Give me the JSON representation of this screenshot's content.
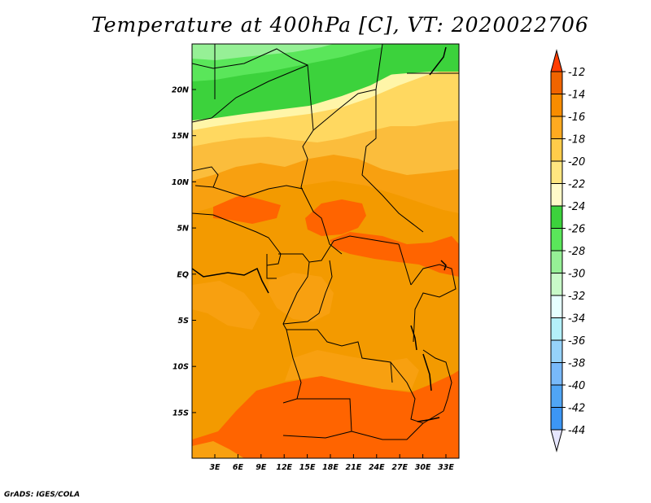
{
  "chart_data": {
    "type": "heatmap",
    "title": "Temperature at 400hPa [C], VT: 2020022706",
    "x_axis": {
      "ticks": [
        "3E",
        "6E",
        "9E",
        "12E",
        "15E",
        "18E",
        "21E",
        "24E",
        "27E",
        "30E",
        "33E"
      ]
    },
    "y_axis": {
      "ticks": [
        "20N",
        "15N",
        "10N",
        "5N",
        "EQ",
        "5S",
        "10S",
        "15S"
      ]
    },
    "colorbar": {
      "levels": [
        "-12",
        "-14",
        "-16",
        "-18",
        "-20",
        "-22",
        "-24",
        "-26",
        "-28",
        "-30",
        "-32",
        "-34",
        "-36",
        "-38",
        "-40",
        "-42",
        "-44"
      ],
      "colors": [
        "#ff3c00",
        "#f06400",
        "#f88c00",
        "#ffaa20",
        "#ffcc4a",
        "#ffe680",
        "#fffac8",
        "#3cd23c",
        "#5ae65a",
        "#96f096",
        "#c8fac8",
        "#e6ffff",
        "#b4f0fa",
        "#96d2fa",
        "#78b9fa",
        "#50a5f5",
        "#3c96f5",
        "#2882f0",
        "#1e6eeb",
        "#1450d2",
        "#0a2896",
        "#e6e6ff"
      ]
    },
    "grid": false
  },
  "footer": "GrADS: IGES/COLA",
  "colors": {
    "c12": "#ff6400",
    "c14": "#f09000",
    "c16": "#f8a010",
    "c18": "#fbbd3c",
    "c20": "#ffd860",
    "c22": "#fff5a8",
    "c24": "#3cd23c",
    "c26": "#5ae65a",
    "c28": "#96f096"
  }
}
